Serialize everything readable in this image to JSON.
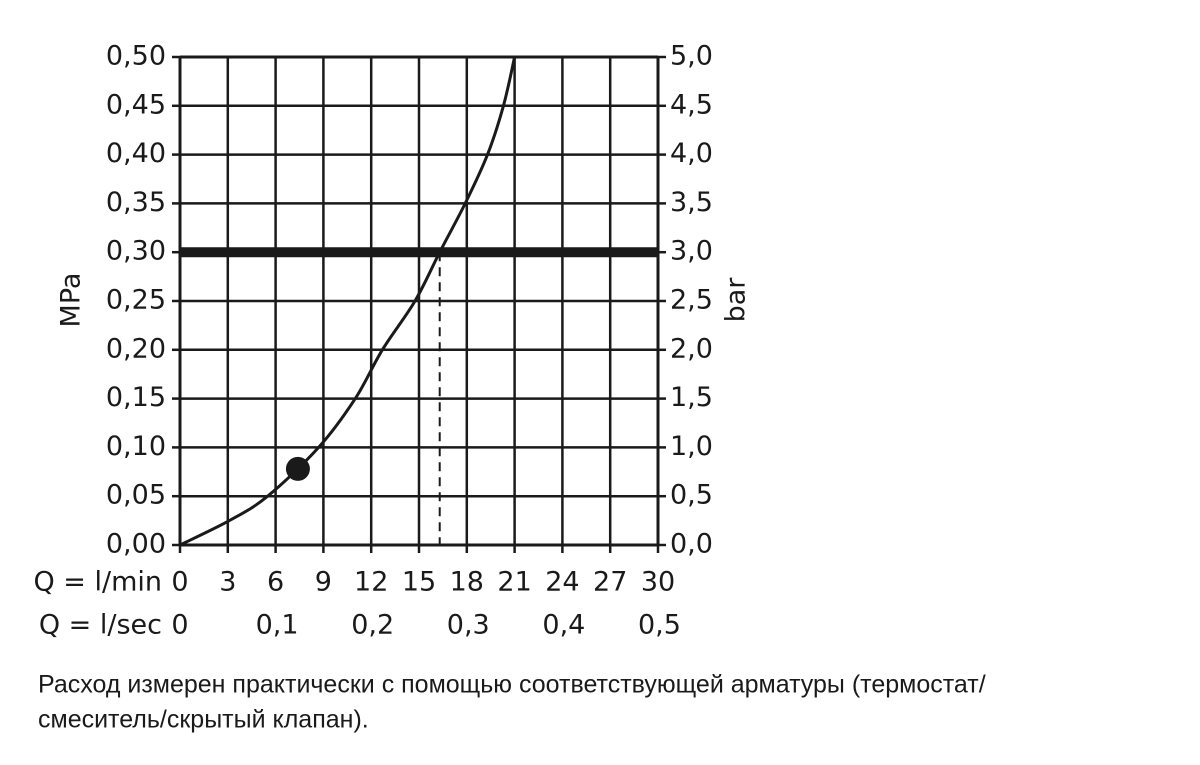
{
  "chart_data": {
    "type": "line",
    "x_label": "Q = l/min",
    "x2_label": "Q = l/sec",
    "y_label": "MPa",
    "y2_label": "bar",
    "x": [
      0,
      3.1,
      5.5,
      8.7,
      11.0,
      12.7,
      14.75,
      16.3,
      17.9,
      19.3,
      20.3,
      21.0
    ],
    "values": [
      0,
      0.025,
      0.05,
      0.1,
      0.15,
      0.2,
      0.25,
      0.3,
      0.35,
      0.4,
      0.45,
      0.5
    ],
    "color": "#1a1a1a",
    "xlim": [
      0,
      30
    ],
    "xticks": [
      0,
      3,
      6,
      9,
      12,
      15,
      18,
      21,
      24,
      27,
      30
    ],
    "x2lim": [
      0,
      0.5
    ],
    "x2ticks": [
      0,
      {
        "value": 0.1,
        "label": "0,1"
      },
      {
        "value": 0.2,
        "label": "0,2"
      },
      {
        "value": 0.3,
        "label": "0,3"
      },
      {
        "value": 0.4,
        "label": "0,4"
      },
      {
        "value": 0.5,
        "label": "0,5"
      }
    ],
    "ylim": [
      0,
      0.5
    ],
    "yticks": [
      {
        "value": 0,
        "label": "0,00"
      },
      {
        "value": 0.05,
        "label": "0,05"
      },
      {
        "value": 0.1,
        "label": "0,10"
      },
      {
        "value": 0.15,
        "label": "0,15"
      },
      {
        "value": 0.2,
        "label": "0,20"
      },
      {
        "value": 0.25,
        "label": "0,25"
      },
      {
        "value": 0.3,
        "label": "0,30"
      },
      {
        "value": 0.35,
        "label": "0,35"
      },
      {
        "value": 0.4,
        "label": "0,40"
      },
      {
        "value": 0.45,
        "label": "0,45"
      },
      {
        "value": 0.5,
        "label": "0,50"
      }
    ],
    "y2lim": [
      0,
      5
    ],
    "y2ticks": [
      {
        "value": 0,
        "label": "0,0"
      },
      {
        "value": 0.5,
        "label": "0,5"
      },
      {
        "value": 1,
        "label": "1,0"
      },
      {
        "value": 1.5,
        "label": "1,5"
      },
      {
        "value": 2,
        "label": "2,0"
      },
      {
        "value": 2.5,
        "label": "2,5"
      },
      {
        "value": 3,
        "label": "3,0"
      },
      {
        "value": 3.5,
        "label": "3,5"
      },
      {
        "value": 4,
        "label": "4,0"
      },
      {
        "value": 4.5,
        "label": "4,5"
      },
      {
        "value": 5,
        "label": "5,0"
      }
    ],
    "grid": true,
    "hline": 0.3,
    "vline": 16.3,
    "marker": {
      "x": 7.4,
      "y": 0.078
    }
  },
  "caption": [
    "Расход измерен практически с помощью соответствующей арматуры (термостат/",
    "смеситель/скрытый клапан)."
  ]
}
